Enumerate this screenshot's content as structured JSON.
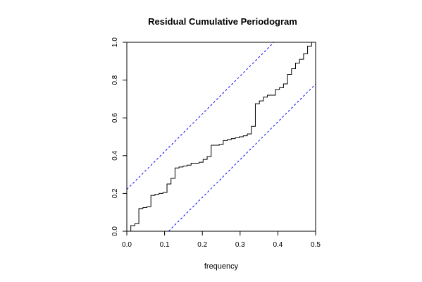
{
  "chart_data": {
    "type": "line",
    "title": "Residual Cumulative Periodogram",
    "xlabel": "frequency",
    "ylabel": "",
    "xlim": [
      0,
      0.5
    ],
    "ylim": [
      0,
      1
    ],
    "x_ticks": [
      "0.0",
      "0.1",
      "0.2",
      "0.3",
      "0.4",
      "0.5"
    ],
    "y_ticks": [
      "0.0",
      "0.2",
      "0.4",
      "0.6",
      "0.8",
      "1.0"
    ],
    "grid": false,
    "legend": "none",
    "series": [
      {
        "step": "post",
        "color": "#000000",
        "x": [
          0.0,
          0.0106,
          0.0213,
          0.0319,
          0.0426,
          0.0532,
          0.0638,
          0.0745,
          0.0851,
          0.0957,
          0.1064,
          0.117,
          0.1277,
          0.1383,
          0.1489,
          0.1596,
          0.1702,
          0.1809,
          0.1915,
          0.2021,
          0.2128,
          0.2234,
          0.234,
          0.2447,
          0.2553,
          0.266,
          0.2766,
          0.2872,
          0.2979,
          0.3085,
          0.3191,
          0.3298,
          0.3404,
          0.3511,
          0.3617,
          0.3723,
          0.383,
          0.3936,
          0.4043,
          0.4149,
          0.4255,
          0.4362,
          0.4468,
          0.4574,
          0.4681,
          0.4787,
          0.4894,
          0.5
        ],
        "y": [
          0.0,
          0.03,
          0.04,
          0.12,
          0.125,
          0.13,
          0.19,
          0.195,
          0.2,
          0.205,
          0.25,
          0.28,
          0.335,
          0.34,
          0.345,
          0.35,
          0.36,
          0.36,
          0.365,
          0.38,
          0.395,
          0.455,
          0.455,
          0.46,
          0.48,
          0.485,
          0.49,
          0.495,
          0.5,
          0.505,
          0.515,
          0.555,
          0.675,
          0.69,
          0.71,
          0.72,
          0.72,
          0.75,
          0.76,
          0.78,
          0.83,
          0.86,
          0.89,
          0.91,
          0.94,
          0.98,
          1.0,
          1.0
        ]
      },
      {
        "color": "#0000ff",
        "dash": "dashed",
        "x": [
          0.0,
          0.5
        ],
        "y": [
          0.221,
          1.221
        ]
      },
      {
        "color": "#0000ff",
        "dash": "dashed",
        "x": [
          0.0,
          0.5
        ],
        "y": [
          -0.221,
          0.779
        ]
      }
    ]
  }
}
